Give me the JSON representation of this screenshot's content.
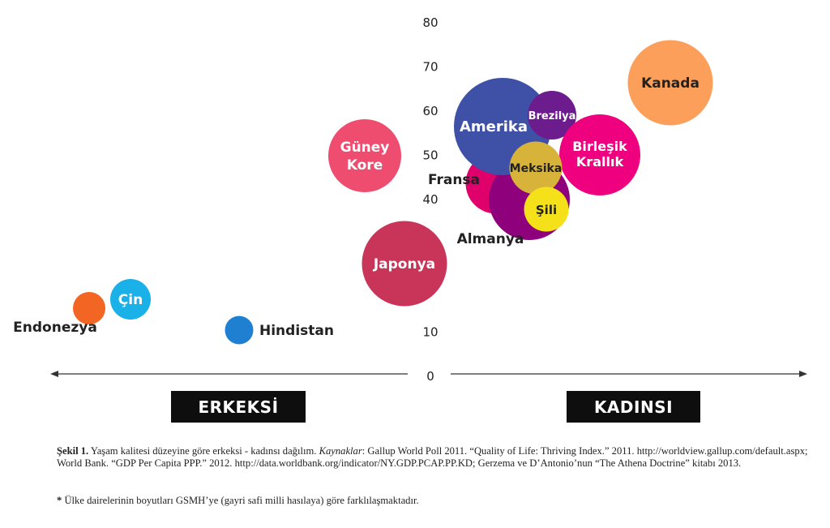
{
  "chart_data": {
    "type": "scatter",
    "variant": "bubble",
    "y_ticks": [
      "0",
      "10",
      "40",
      "50",
      "60",
      "70",
      "80"
    ],
    "ylim": [
      0,
      80
    ],
    "axis_labels": {
      "left": "ERKEKSİ",
      "right": "KADINSI"
    },
    "x_direction": "left = ERKEKSİ, right = KADINSI (no numeric scale printed)",
    "bubbles": [
      {
        "name": "Endonezya",
        "x": 110,
        "y": 15,
        "size": 0.8,
        "color": "#f26522"
      },
      {
        "name": "Çin",
        "x": 161,
        "y": 17,
        "size": 1.0,
        "color": "#1ab0e8"
      },
      {
        "name": "Hindistan",
        "x": 295,
        "y": 10,
        "size": 0.7,
        "color": "#1f7fd1"
      },
      {
        "name": "Güney Kore",
        "x": 450,
        "y": 50,
        "size": 1.8,
        "color": "#ef4d6f"
      },
      {
        "name": "Japonya",
        "x": 499,
        "y": 25,
        "size": 2.1,
        "color": "#c93558"
      },
      {
        "name": "Fransa",
        "x": 612,
        "y": 43,
        "size": 1.5,
        "color": "#e0006c"
      },
      {
        "name": "Almanya",
        "x": 653,
        "y": 40,
        "size": 2.0,
        "color": "#8f007d"
      },
      {
        "name": "Amerika",
        "x": 620,
        "y": 56,
        "size": 2.4,
        "color": "#3f51a6"
      },
      {
        "name": "Brezilya",
        "x": 681,
        "y": 58,
        "size": 1.2,
        "color": "#6c1c8c"
      },
      {
        "name": "Birleşik Krallık",
        "x": 740,
        "y": 49,
        "size": 2.0,
        "color": "#ee007e"
      },
      {
        "name": "Kanada",
        "x": 827,
        "y": 69,
        "size": 2.1,
        "color": "#fb9f5a"
      },
      {
        "name": "Meksika",
        "x": 661,
        "y": 47,
        "size": 1.3,
        "color": "#d7b33a"
      },
      {
        "name": "Şili",
        "x": 674,
        "y": 38,
        "size": 1.1,
        "color": "#f5e11a"
      }
    ]
  },
  "caption": {
    "figure_label": "Şekil 1.",
    "title": " Yaşam kalitesi düzeyine göre erkeksi - kadınsı dağılım.  ",
    "sources_label": "Kaynaklar",
    "sources": ":  Gallup World Poll 2011.  “Quality of Life: Thriving Index.”  2011. http://worldview.gallup.com/default.aspx; World Bank. “GDP Per Capita PPP.” 2012. http://data.worldbank.org/indicator/NY.GDP.PCAP.PP.KD; Gerzema ve D’Antonio’nun “The Athena Doctrine” kitabı 2013.",
    "note_star": "*",
    "note": " Ülke dairelerinin boyutları GSMH’ye (gayri safi milli hasılaya) göre farklılaşmaktadır."
  }
}
